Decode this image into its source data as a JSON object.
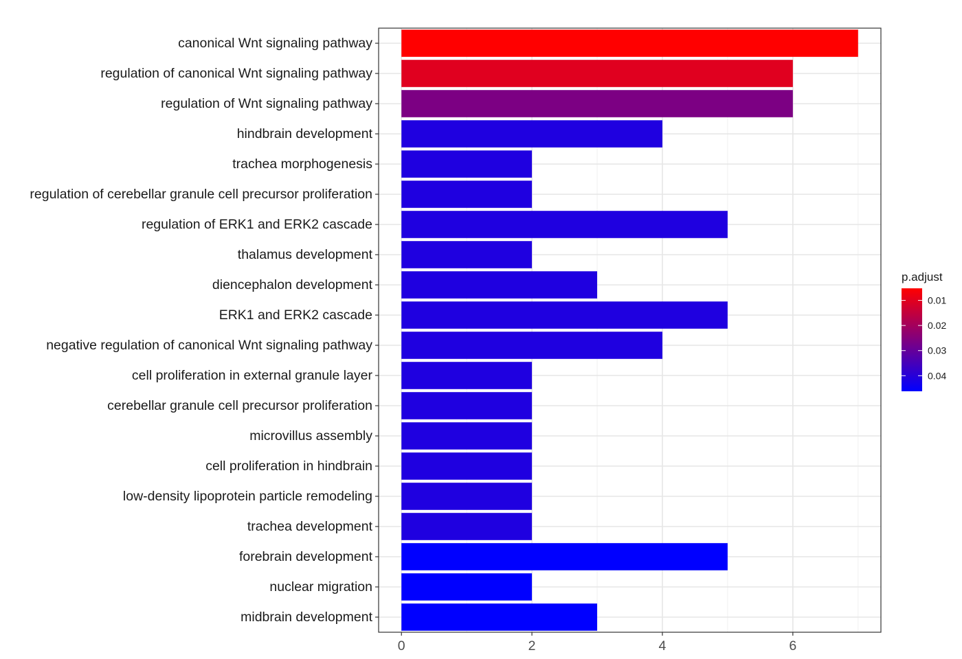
{
  "chart_data": {
    "type": "bar",
    "orientation": "horizontal",
    "categories": [
      "canonical Wnt signaling pathway",
      "regulation of canonical Wnt signaling pathway",
      "regulation of Wnt signaling pathway",
      "hindbrain development",
      "trachea morphogenesis",
      "regulation of cerebellar granule cell precursor proliferation",
      "regulation of ERK1 and ERK2 cascade",
      "thalamus development",
      "diencephalon development",
      "ERK1 and ERK2 cascade",
      "negative regulation of canonical Wnt signaling pathway",
      "cell proliferation in external granule layer",
      "cerebellar granule cell precursor proliferation",
      "microvillus assembly",
      "cell proliferation in hindbrain",
      "low-density lipoprotein particle remodeling",
      "trachea development",
      "forebrain development",
      "nuclear migration",
      "midbrain development"
    ],
    "values": [
      7,
      6,
      6,
      4,
      2,
      2,
      5,
      2,
      3,
      5,
      4,
      2,
      2,
      2,
      2,
      2,
      2,
      5,
      2,
      3
    ],
    "p_adjust": [
      0.0052,
      0.0102,
      0.0262,
      0.0412,
      0.0412,
      0.0412,
      0.0412,
      0.0412,
      0.0412,
      0.0412,
      0.0412,
      0.0412,
      0.0412,
      0.0412,
      0.0412,
      0.0412,
      0.0412,
      0.0462,
      0.0462,
      0.0462
    ],
    "xlim": [
      -0.35,
      7.35
    ],
    "x_ticks": [
      0,
      2,
      4,
      6
    ],
    "x_tick_labels": [
      "0",
      "2",
      "4",
      "6"
    ],
    "xlabel": "",
    "ylabel": "",
    "title": "",
    "grid": true,
    "legend": {
      "title": "p.adjust",
      "placement": "right",
      "colors": {
        "low_p": "#ff0000",
        "high_p": "#0000ff"
      },
      "range": [
        0.0052,
        0.0462
      ],
      "ticks": [
        0.01,
        0.02,
        0.03,
        0.04
      ],
      "tick_labels": [
        "0.01",
        "0.02",
        "0.03",
        "0.04"
      ]
    }
  }
}
